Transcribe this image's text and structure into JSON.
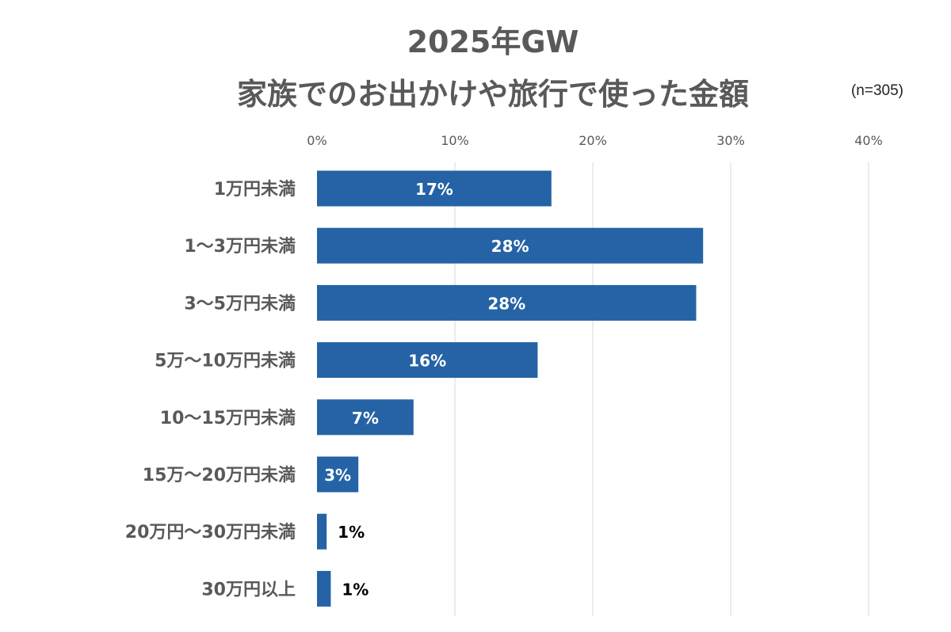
{
  "colors": {
    "bar": "#2563a6",
    "grid": "#d9d9d9",
    "title": "#595959",
    "category_label": "#595959",
    "tick_label": "#595959",
    "label_inside": "#ffffff",
    "label_outside": "#000000"
  },
  "chart_data": {
    "type": "bar",
    "orientation": "horizontal",
    "title_line1": "2025年GW",
    "title_line2": "家族でのお出かけや旅行で使った金額",
    "sample_note": "(n=305)",
    "categories": [
      "1万円未満",
      "1～3万円未満",
      "3～5万円未満",
      "5万～10万円未満",
      "10～15万円未満",
      "15万～20万円未満",
      "20万円～30万円未満",
      "30万円以上"
    ],
    "values": [
      17,
      28,
      27.5,
      16,
      7,
      3,
      0.7,
      1
    ],
    "data_labels": [
      "17%",
      "28%",
      "28%",
      "16%",
      "7%",
      "3%",
      "1%",
      "1%"
    ],
    "xlim": [
      0,
      40
    ],
    "x_ticks": [
      0,
      10,
      20,
      30,
      40
    ],
    "x_tick_labels": [
      "0%",
      "10%",
      "20%",
      "30%",
      "40%"
    ],
    "x_axis_position": "top",
    "grid": true,
    "legend": "none"
  }
}
